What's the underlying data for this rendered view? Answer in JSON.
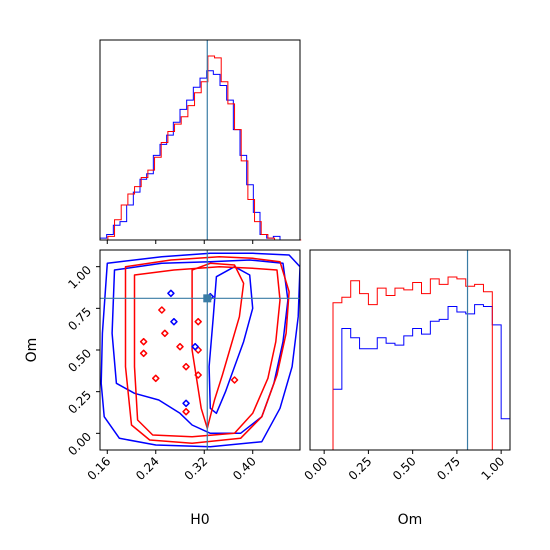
{
  "chart_data": {
    "type": "corner",
    "parameters": [
      "H0",
      "Om"
    ],
    "colors": {
      "red": "#ff0000",
      "blue": "#0000ff",
      "truth": "#3a7ca5"
    },
    "truths": {
      "H0": 0.325,
      "Om": 0.81
    },
    "panels": {
      "H0_hist": {
        "xlim": [
          0.148,
          0.478
        ],
        "ticks": [
          0.16,
          0.24,
          0.32,
          0.4
        ],
        "bin_width": 0.011,
        "red": [
          0.0,
          0.02,
          0.11,
          0.19,
          0.25,
          0.29,
          0.34,
          0.38,
          0.45,
          0.53,
          0.59,
          0.63,
          0.67,
          0.73,
          0.8,
          0.86,
          1.0,
          0.99,
          0.86,
          0.74,
          0.6,
          0.43,
          0.22,
          0.1,
          0.03,
          0.01,
          0.0,
          0.0,
          0.0,
          0.0
        ],
        "blue": [
          0.01,
          0.03,
          0.08,
          0.1,
          0.19,
          0.26,
          0.33,
          0.36,
          0.46,
          0.52,
          0.57,
          0.64,
          0.71,
          0.76,
          0.83,
          0.88,
          0.92,
          0.9,
          0.84,
          0.76,
          0.6,
          0.46,
          0.3,
          0.15,
          0.03,
          0.01,
          0.02,
          0.0,
          0.0,
          0.0
        ]
      },
      "Om_hist": {
        "xlim": [
          -0.08,
          1.05
        ],
        "ticks": [
          0.0,
          0.25,
          0.5,
          0.75,
          1.0
        ],
        "tick_labels": [
          "0.00",
          "0.25",
          "0.50",
          "0.75",
          "1.00"
        ],
        "bin_width": 0.05,
        "red": [
          0.0,
          0.0,
          0.8,
          0.83,
          0.92,
          0.85,
          0.79,
          0.88,
          0.84,
          0.88,
          0.87,
          0.91,
          0.85,
          0.93,
          0.9,
          0.94,
          0.93,
          0.89,
          0.9,
          0.86,
          0.0
        ],
        "blue": [
          0.0,
          0.0,
          0.33,
          0.66,
          0.61,
          0.55,
          0.55,
          0.61,
          0.58,
          0.57,
          0.62,
          0.66,
          0.63,
          0.7,
          0.71,
          0.78,
          0.75,
          0.74,
          0.79,
          0.78,
          0.68,
          0.17
        ]
      },
      "H0_Om_contour": {
        "xlim": [
          0.148,
          0.478
        ],
        "ylim": [
          -0.1,
          1.1
        ],
        "xticks": [
          0.16,
          0.24,
          0.32,
          0.4
        ],
        "yticks": [
          0.0,
          0.25,
          0.5,
          0.75,
          1.0
        ],
        "ytick_labels": [
          "0.00",
          "0.25",
          "0.50",
          "0.75",
          "1.00"
        ],
        "red_contours": [
          [
            [
              0.19,
              1.0
            ],
            [
              0.265,
              1.04
            ],
            [
              0.345,
              1.06
            ],
            [
              0.4,
              1.05
            ],
            [
              0.445,
              1.03
            ],
            [
              0.46,
              0.85
            ],
            [
              0.455,
              0.6
            ],
            [
              0.44,
              0.35
            ],
            [
              0.415,
              0.1
            ],
            [
              0.38,
              -0.03
            ],
            [
              0.3,
              -0.06
            ],
            [
              0.23,
              -0.04
            ],
            [
              0.2,
              0.05
            ],
            [
              0.19,
              0.4
            ],
            [
              0.19,
              0.7
            ],
            [
              0.19,
              1.0
            ]
          ],
          [
            [
              0.205,
              0.95
            ],
            [
              0.27,
              0.98
            ],
            [
              0.345,
              1.0
            ],
            [
              0.4,
              0.99
            ],
            [
              0.44,
              0.98
            ],
            [
              0.445,
              0.8
            ],
            [
              0.438,
              0.55
            ],
            [
              0.425,
              0.33
            ],
            [
              0.4,
              0.12
            ],
            [
              0.37,
              0.0
            ],
            [
              0.3,
              -0.02
            ],
            [
              0.235,
              -0.01
            ],
            [
              0.21,
              0.08
            ],
            [
              0.205,
              0.4
            ],
            [
              0.205,
              0.95
            ]
          ],
          [
            [
              0.3,
              0.98
            ],
            [
              0.33,
              1.02
            ],
            [
              0.37,
              1.01
            ],
            [
              0.385,
              0.9
            ],
            [
              0.378,
              0.7
            ],
            [
              0.362,
              0.5
            ],
            [
              0.35,
              0.35
            ],
            [
              0.337,
              0.2
            ],
            [
              0.325,
              0.03
            ],
            [
              0.315,
              0.15
            ],
            [
              0.3,
              0.5
            ],
            [
              0.3,
              0.98
            ]
          ]
        ],
        "red_islands": [
          [
            0.25,
            0.74
          ],
          [
            0.31,
            0.67
          ],
          [
            0.22,
            0.55
          ],
          [
            0.28,
            0.52
          ],
          [
            0.22,
            0.48
          ],
          [
            0.29,
            0.4
          ],
          [
            0.24,
            0.33
          ],
          [
            0.37,
            0.32
          ],
          [
            0.29,
            0.13
          ],
          [
            0.31,
            0.35
          ],
          [
            0.255,
            0.6
          ],
          [
            0.31,
            0.5
          ]
        ],
        "blue_contours": [
          [
            [
              0.16,
              1.02
            ],
            [
              0.25,
              1.06
            ],
            [
              0.33,
              1.08
            ],
            [
              0.4,
              1.08
            ],
            [
              0.46,
              1.07
            ],
            [
              0.478,
              1.0
            ],
            [
              0.475,
              0.7
            ],
            [
              0.465,
              0.4
            ],
            [
              0.445,
              0.15
            ],
            [
              0.415,
              -0.05
            ],
            [
              0.33,
              -0.08
            ],
            [
              0.24,
              -0.07
            ],
            [
              0.18,
              -0.03
            ],
            [
              0.155,
              0.1
            ],
            [
              0.15,
              0.3
            ],
            [
              0.152,
              0.6
            ],
            [
              0.16,
              1.02
            ]
          ],
          [
            [
              0.172,
              0.98
            ],
            [
              0.25,
              1.02
            ],
            [
              0.33,
              1.03
            ],
            [
              0.395,
              1.04
            ],
            [
              0.45,
              1.02
            ],
            [
              0.458,
              0.8
            ],
            [
              0.45,
              0.55
            ],
            [
              0.435,
              0.3
            ],
            [
              0.415,
              0.1
            ],
            [
              0.38,
              0.0
            ],
            [
              0.33,
              0.0
            ],
            [
              0.3,
              0.05
            ],
            [
              0.28,
              0.12
            ],
            [
              0.245,
              0.2
            ],
            [
              0.205,
              0.24
            ],
            [
              0.175,
              0.3
            ],
            [
              0.168,
              0.6
            ],
            [
              0.172,
              0.98
            ]
          ],
          [
            [
              0.34,
              0.94
            ],
            [
              0.37,
              1.0
            ],
            [
              0.395,
              0.95
            ],
            [
              0.4,
              0.75
            ],
            [
              0.385,
              0.55
            ],
            [
              0.37,
              0.4
            ],
            [
              0.355,
              0.25
            ],
            [
              0.34,
              0.12
            ],
            [
              0.33,
              0.15
            ],
            [
              0.328,
              0.4
            ],
            [
              0.335,
              0.7
            ],
            [
              0.34,
              0.94
            ]
          ]
        ],
        "blue_islands": [
          [
            0.265,
            0.84
          ],
          [
            0.27,
            0.67
          ],
          [
            0.305,
            0.52
          ],
          [
            0.29,
            0.18
          ],
          [
            0.33,
            0.82
          ]
        ]
      }
    },
    "xlabels": [
      "H0",
      "Om"
    ],
    "ylabel": "Om"
  }
}
